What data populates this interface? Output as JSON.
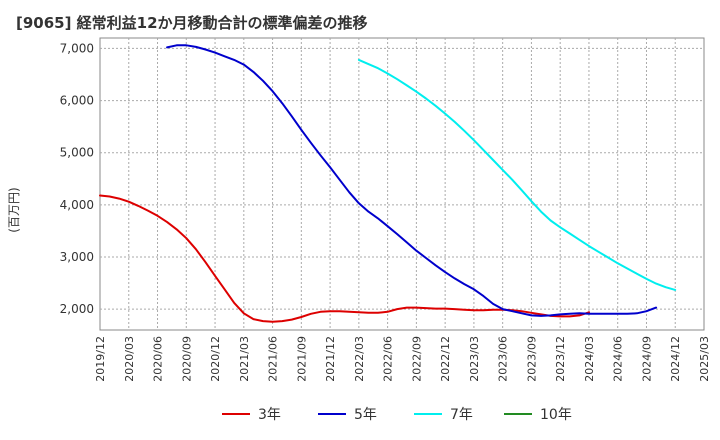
{
  "chart_data": {
    "type": "line",
    "title": "[9065]  経常利益12か月移動合計の標準偏差の推移",
    "ylabel": "(百万円)",
    "xlabel": "",
    "ylim": [
      1600,
      7200
    ],
    "yticks": [
      2000,
      3000,
      4000,
      5000,
      6000,
      7000
    ],
    "ytick_labels": [
      "2,000",
      "3,000",
      "4,000",
      "5,000",
      "6,000",
      "7,000"
    ],
    "x_labels": [
      "2019/12",
      "2020/03",
      "2020/06",
      "2020/09",
      "2020/12",
      "2021/03",
      "2021/06",
      "2021/09",
      "2021/12",
      "2022/03",
      "2022/06",
      "2022/09",
      "2022/12",
      "2023/03",
      "2023/06",
      "2023/09",
      "2023/12",
      "2024/03",
      "2024/06",
      "2024/09",
      "2024/12",
      "2025/03"
    ],
    "grid": true,
    "legend_position": "bottom",
    "series": [
      {
        "name": "3年",
        "color": "#dd0000",
        "start_month": "2019/12",
        "values": [
          4180,
          4160,
          4120,
          4060,
          3980,
          3890,
          3790,
          3670,
          3530,
          3360,
          3150,
          2900,
          2640,
          2380,
          2120,
          1920,
          1810,
          1770,
          1760,
          1770,
          1800,
          1850,
          1910,
          1950,
          1960,
          1960,
          1950,
          1940,
          1930,
          1930,
          1950,
          2000,
          2030,
          2030,
          2020,
          2010,
          2010,
          2000,
          1990,
          1980,
          1980,
          1990,
          1990,
          1980,
          1960,
          1930,
          1900,
          1870,
          1860,
          1860,
          1880,
          1940
        ]
      },
      {
        "name": "5年",
        "color": "#0000cc",
        "start_month": "2019/12",
        "values": [
          null,
          null,
          null,
          null,
          null,
          null,
          null,
          7020,
          7060,
          7060,
          7030,
          6980,
          6920,
          6850,
          6780,
          6690,
          6550,
          6380,
          6180,
          5950,
          5700,
          5440,
          5190,
          4950,
          4720,
          4480,
          4240,
          4030,
          3870,
          3740,
          3590,
          3440,
          3280,
          3120,
          2980,
          2840,
          2710,
          2590,
          2480,
          2380,
          2250,
          2100,
          2000,
          1960,
          1920,
          1880,
          1870,
          1880,
          1900,
          1910,
          1920,
          1910,
          1910,
          1910,
          1910,
          1910,
          1920,
          1960,
          2030
        ]
      },
      {
        "name": "7年",
        "color": "#00eeee",
        "start_month": "2022/03",
        "values": [
          6780,
          6700,
          6620,
          6520,
          6410,
          6290,
          6170,
          6040,
          5900,
          5750,
          5590,
          5420,
          5240,
          5050,
          4860,
          4670,
          4480,
          4280,
          4070,
          3870,
          3700,
          3570,
          3450,
          3330,
          3210,
          3100,
          2990,
          2880,
          2780,
          2680,
          2580,
          2490,
          2420,
          2370
        ]
      },
      {
        "name": "10年",
        "color": "#228b22",
        "start_month": "2019/12",
        "values": []
      }
    ]
  }
}
